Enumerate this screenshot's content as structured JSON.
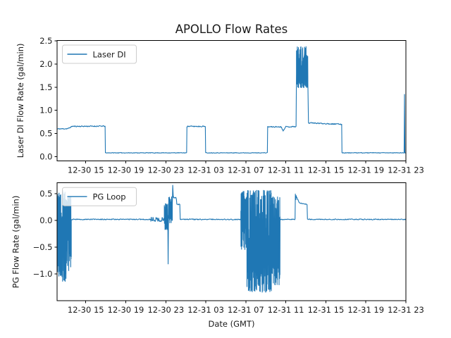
{
  "figure": {
    "title": "APOLLO Flow Rates",
    "xlabel": "Date (GMT)",
    "background": "#ffffff",
    "line_color": "#1f77b4",
    "spine_color": "#000000",
    "legend_border_color": "#cccccc",
    "xticks": [
      {
        "hour": 15,
        "label": "12-30 15"
      },
      {
        "hour": 19,
        "label": "12-30 19"
      },
      {
        "hour": 23,
        "label": "12-30 23"
      },
      {
        "hour": 27,
        "label": "12-31 03"
      },
      {
        "hour": 31,
        "label": "12-31 07"
      },
      {
        "hour": 35,
        "label": "12-31 11"
      },
      {
        "hour": 39,
        "label": "12-31 15"
      },
      {
        "hour": 43,
        "label": "12-31 19"
      },
      {
        "hour": 47,
        "label": "12-31 23"
      }
    ],
    "x_hours_origin": "12-30 00:00 GMT"
  },
  "chart_data": [
    {
      "type": "line",
      "ylabel": "Laser DI Flow Rate (gal/min)",
      "legend": {
        "label": "Laser DI",
        "position": "upper left"
      },
      "seed": 11,
      "xlim_hours": [
        12.13,
        47.0
      ],
      "ylim": [
        -0.086,
        2.505
      ],
      "yticks": [
        {
          "v": 0.0,
          "label": "0.0"
        },
        {
          "v": 0.5,
          "label": "0.5"
        },
        {
          "v": 1.0,
          "label": "1.0"
        },
        {
          "v": 1.5,
          "label": "1.5"
        },
        {
          "v": 2.0,
          "label": "2.0"
        },
        {
          "v": 2.5,
          "label": "2.5"
        }
      ],
      "grid": false,
      "segments": [
        {
          "kind": "line",
          "t0": 12.13,
          "t1": 13.2,
          "v0": 0.6,
          "v1": 0.605,
          "jitter": 0.012
        },
        {
          "kind": "line",
          "t0": 13.2,
          "t1": 13.6,
          "v0": 0.605,
          "v1": 0.65,
          "jitter": 0.012
        },
        {
          "kind": "line",
          "t0": 13.6,
          "t1": 16.93,
          "v0": 0.655,
          "v1": 0.66,
          "jitter": 0.013
        },
        {
          "kind": "line",
          "t0": 16.93,
          "t1": 16.96,
          "v0": 0.66,
          "v1": 0.085,
          "jitter": 0
        },
        {
          "kind": "line",
          "t0": 16.96,
          "t1": 25.08,
          "v0": 0.085,
          "v1": 0.085,
          "jitter": 0.007
        },
        {
          "kind": "line",
          "t0": 25.08,
          "t1": 25.11,
          "v0": 0.085,
          "v1": 0.65,
          "jitter": 0
        },
        {
          "kind": "line",
          "t0": 25.11,
          "t1": 26.95,
          "v0": 0.655,
          "v1": 0.655,
          "jitter": 0.013
        },
        {
          "kind": "line",
          "t0": 26.95,
          "t1": 26.98,
          "v0": 0.655,
          "v1": 0.085,
          "jitter": 0
        },
        {
          "kind": "line",
          "t0": 26.98,
          "t1": 33.15,
          "v0": 0.085,
          "v1": 0.085,
          "jitter": 0.007
        },
        {
          "kind": "line",
          "t0": 33.15,
          "t1": 33.18,
          "v0": 0.085,
          "v1": 0.64,
          "jitter": 0
        },
        {
          "kind": "line",
          "t0": 33.18,
          "t1": 34.55,
          "v0": 0.645,
          "v1": 0.645,
          "jitter": 0.013
        },
        {
          "kind": "line",
          "t0": 34.55,
          "t1": 34.72,
          "v0": 0.645,
          "v1": 0.555,
          "jitter": 0.01
        },
        {
          "kind": "line",
          "t0": 34.72,
          "t1": 34.95,
          "v0": 0.555,
          "v1": 0.64,
          "jitter": 0.01
        },
        {
          "kind": "line",
          "t0": 34.95,
          "t1": 36.02,
          "v0": 0.645,
          "v1": 0.65,
          "jitter": 0.013
        },
        {
          "kind": "line",
          "t0": 36.02,
          "t1": 36.06,
          "v0": 0.65,
          "v1": 1.8,
          "jitter": 0
        },
        {
          "kind": "band",
          "t0": 36.06,
          "t1": 37.2,
          "lo": 1.48,
          "hi": 2.38
        },
        {
          "kind": "line",
          "t0": 37.2,
          "t1": 37.26,
          "v0": 1.6,
          "v1": 0.73,
          "jitter": 0
        },
        {
          "kind": "line",
          "t0": 37.26,
          "t1": 40.58,
          "v0": 0.73,
          "v1": 0.7,
          "jitter": 0.013
        },
        {
          "kind": "line",
          "t0": 40.58,
          "t1": 40.61,
          "v0": 0.7,
          "v1": 0.085,
          "jitter": 0
        },
        {
          "kind": "line",
          "t0": 40.61,
          "t1": 46.82,
          "v0": 0.085,
          "v1": 0.085,
          "jitter": 0.007
        },
        {
          "kind": "line",
          "t0": 46.82,
          "t1": 46.86,
          "v0": 0.085,
          "v1": 1.35,
          "jitter": 0
        },
        {
          "kind": "line",
          "t0": 46.86,
          "t1": 46.9,
          "v0": 1.35,
          "v1": 0.085,
          "jitter": 0
        },
        {
          "kind": "line",
          "t0": 46.9,
          "t1": 47.0,
          "v0": 0.085,
          "v1": 0.085,
          "jitter": 0.006
        }
      ]
    },
    {
      "type": "line",
      "ylabel": "PG Flow Rate (gal/min)",
      "legend": {
        "label": "PG Loop",
        "position": "upper left"
      },
      "seed": 97,
      "xlim_hours": [
        12.13,
        47.0
      ],
      "ylim": [
        -1.506,
        0.704
      ],
      "yticks": [
        {
          "v": 0.5,
          "label": "0.5"
        },
        {
          "v": 0.0,
          "label": "0.0"
        },
        {
          "v": -0.5,
          "label": "−0.5"
        },
        {
          "v": -1.0,
          "label": "−1.0"
        }
      ],
      "grid": false,
      "segments": [
        {
          "kind": "band",
          "t0": 12.13,
          "t1": 12.55,
          "lo": -1.05,
          "hi": 0.52
        },
        {
          "kind": "band",
          "t0": 12.55,
          "t1": 13.05,
          "lo": -1.15,
          "hi": 0.57
        },
        {
          "kind": "band",
          "t0": 13.05,
          "t1": 13.55,
          "lo": -0.95,
          "hi": 0.45
        },
        {
          "kind": "line",
          "t0": 13.55,
          "t1": 21.5,
          "v0": 0.02,
          "v1": 0.02,
          "jitter": 0.01
        },
        {
          "kind": "line",
          "t0": 21.5,
          "t1": 22.85,
          "v0": 0.02,
          "v1": 0.02,
          "jitter": 0.045
        },
        {
          "kind": "band",
          "t0": 22.85,
          "t1": 23.2,
          "lo": -0.18,
          "hi": 0.32
        },
        {
          "kind": "line",
          "t0": 23.2,
          "t1": 23.23,
          "v0": 0.0,
          "v1": -0.82,
          "jitter": 0
        },
        {
          "kind": "line",
          "t0": 23.23,
          "t1": 23.27,
          "v0": -0.82,
          "v1": 0.05,
          "jitter": 0
        },
        {
          "kind": "band",
          "t0": 23.27,
          "t1": 23.65,
          "lo": -0.05,
          "hi": 0.45
        },
        {
          "kind": "line",
          "t0": 23.65,
          "t1": 23.69,
          "v0": 0.3,
          "v1": 0.65,
          "jitter": 0
        },
        {
          "kind": "line",
          "t0": 23.69,
          "t1": 23.75,
          "v0": 0.65,
          "v1": 0.44,
          "jitter": 0.02
        },
        {
          "kind": "line",
          "t0": 23.75,
          "t1": 24.05,
          "v0": 0.44,
          "v1": 0.41,
          "jitter": 0.02
        },
        {
          "kind": "line",
          "t0": 24.05,
          "t1": 24.1,
          "v0": 0.41,
          "v1": 0.31,
          "jitter": 0
        },
        {
          "kind": "line",
          "t0": 24.1,
          "t1": 24.4,
          "v0": 0.31,
          "v1": 0.3,
          "jitter": 0.012
        },
        {
          "kind": "line",
          "t0": 24.4,
          "t1": 24.44,
          "v0": 0.3,
          "v1": 0.02,
          "jitter": 0
        },
        {
          "kind": "line",
          "t0": 24.44,
          "t1": 30.5,
          "v0": 0.02,
          "v1": 0.02,
          "jitter": 0.01
        },
        {
          "kind": "band",
          "t0": 30.5,
          "t1": 31.1,
          "lo": -0.55,
          "hi": 0.55
        },
        {
          "kind": "band",
          "t0": 31.1,
          "t1": 33.6,
          "lo": -1.35,
          "hi": 0.57
        },
        {
          "kind": "band",
          "t0": 33.6,
          "t1": 34.42,
          "lo": -1.22,
          "hi": 0.45
        },
        {
          "kind": "line",
          "t0": 34.42,
          "t1": 35.92,
          "v0": 0.02,
          "v1": 0.02,
          "jitter": 0.01
        },
        {
          "kind": "line",
          "t0": 35.92,
          "t1": 35.95,
          "v0": 0.02,
          "v1": 0.5,
          "jitter": 0
        },
        {
          "kind": "line",
          "t0": 35.95,
          "t1": 36.0,
          "v0": 0.5,
          "v1": 0.4,
          "jitter": 0.02
        },
        {
          "kind": "line",
          "t0": 36.0,
          "t1": 36.04,
          "v0": 0.4,
          "v1": 0.47,
          "jitter": 0
        },
        {
          "kind": "line",
          "t0": 36.04,
          "t1": 36.35,
          "v0": 0.45,
          "v1": 0.33,
          "jitter": 0.01
        },
        {
          "kind": "line",
          "t0": 36.35,
          "t1": 37.12,
          "v0": 0.33,
          "v1": 0.3,
          "jitter": 0.008
        },
        {
          "kind": "line",
          "t0": 37.12,
          "t1": 37.16,
          "v0": 0.3,
          "v1": 0.02,
          "jitter": 0
        },
        {
          "kind": "line",
          "t0": 37.16,
          "t1": 47.0,
          "v0": 0.02,
          "v1": 0.02,
          "jitter": 0.009
        }
      ]
    }
  ]
}
